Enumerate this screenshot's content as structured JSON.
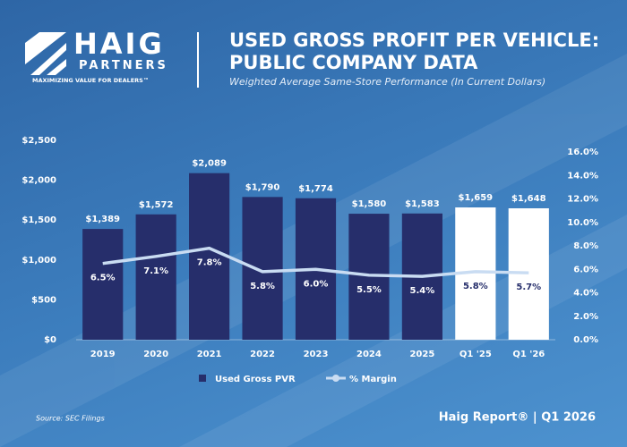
{
  "branding": {
    "logo_name": "HAIG",
    "logo_sub": "PARTNERS",
    "tagline": "MAXIMIZING VALUE FOR DEALERS™",
    "footer": "Haig Report® | Q1 2026",
    "source": "Source: SEC Filings"
  },
  "chart_data": {
    "type": "bar",
    "title": "USED GROSS PROFIT PER VEHICLE: PUBLIC COMPANY DATA",
    "subtitle": "Weighted Average Same-Store Performance (In Current Dollars)",
    "categories": [
      "2019",
      "2020",
      "2021",
      "2022",
      "2023",
      "2024",
      "2025",
      "Q1 '25",
      "Q1 '26"
    ],
    "series": [
      {
        "name": "Used Gross PVR",
        "type": "bar",
        "color": "#262e6b",
        "colors": [
          "#262e6b",
          "#262e6b",
          "#262e6b",
          "#262e6b",
          "#262e6b",
          "#262e6b",
          "#262e6b",
          "#ffffff",
          "#ffffff"
        ],
        "values": [
          1389,
          1572,
          2089,
          1790,
          1774,
          1580,
          1583,
          1659,
          1648
        ],
        "value_labels": [
          "$1,389",
          "$1,572",
          "$2,089",
          "$1,790",
          "$1,774",
          "$1,580",
          "$1,583",
          "$1,659",
          "$1,648"
        ]
      },
      {
        "name": "% Margin",
        "type": "line",
        "axis": "y2",
        "color": "#c9dcf2",
        "values": [
          6.5,
          7.1,
          7.8,
          5.8,
          6.0,
          5.5,
          5.4,
          5.8,
          5.7
        ],
        "value_labels": [
          "6.5%",
          "7.1%",
          "7.8%",
          "5.8%",
          "6.0%",
          "5.5%",
          "5.4%",
          "5.8%",
          "5.7%"
        ]
      }
    ],
    "ylim": [
      0,
      2500
    ],
    "yticks": [
      {
        "value": 0,
        "label": "$0"
      },
      {
        "value": 500,
        "label": "$500"
      },
      {
        "value": 1000,
        "label": "$1,000"
      },
      {
        "value": 1500,
        "label": "$1,500"
      },
      {
        "value": 2000,
        "label": "$2,000"
      },
      {
        "value": 2500,
        "label": "$2,500"
      }
    ],
    "y2lim": [
      0,
      16
    ],
    "y2ticks": [
      {
        "value": 0,
        "label": "0.0%"
      },
      {
        "value": 2,
        "label": "2.0%"
      },
      {
        "value": 4,
        "label": "4.0%"
      },
      {
        "value": 6,
        "label": "6.0%"
      },
      {
        "value": 8,
        "label": "8.0%"
      },
      {
        "value": 10,
        "label": "10.0%"
      },
      {
        "value": 12,
        "label": "12.0%"
      },
      {
        "value": 14,
        "label": "14.0%"
      },
      {
        "value": 16,
        "label": "16.0%"
      }
    ],
    "grid": false
  }
}
